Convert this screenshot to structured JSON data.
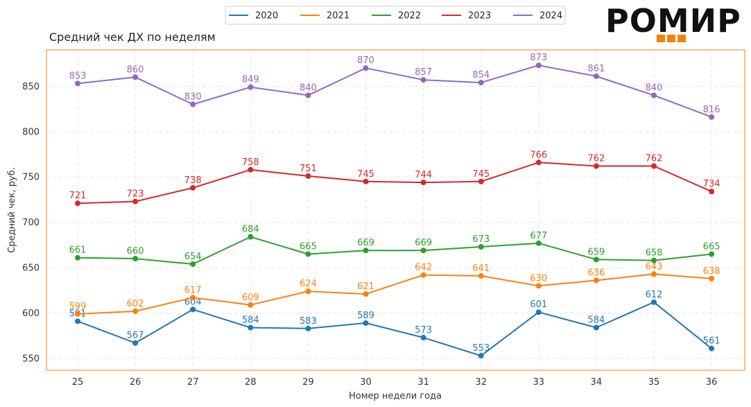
{
  "brand": {
    "name": "РОМИР",
    "accent_color": "#f5820b"
  },
  "chart_data": {
    "type": "line",
    "title": "Средний чек ДХ по неделям",
    "xlabel": "Номер недели года",
    "ylabel": "Средний чек, руб.",
    "x": [
      25,
      26,
      27,
      28,
      29,
      30,
      31,
      32,
      33,
      34,
      35,
      36
    ],
    "ylim": [
      537,
      890
    ],
    "yticks": [
      550,
      600,
      650,
      700,
      750,
      800,
      850
    ],
    "grid": true,
    "legend_position": "top-center",
    "frame_color": "#f5820b",
    "series": [
      {
        "name": "2020",
        "color": "#1f77b4",
        "values": [
          591,
          567,
          604,
          584,
          583,
          589,
          573,
          553,
          601,
          584,
          612,
          561
        ]
      },
      {
        "name": "2021",
        "color": "#ff7f0e",
        "values": [
          599,
          602,
          617,
          609,
          624,
          621,
          642,
          641,
          630,
          636,
          643,
          638
        ]
      },
      {
        "name": "2022",
        "color": "#2ca02c",
        "values": [
          661,
          660,
          654,
          684,
          665,
          669,
          669,
          673,
          677,
          659,
          658,
          665
        ]
      },
      {
        "name": "2023",
        "color": "#d62728",
        "values": [
          721,
          723,
          738,
          758,
          751,
          745,
          744,
          745,
          766,
          762,
          762,
          734
        ]
      },
      {
        "name": "2024",
        "color": "#9467bd",
        "values": [
          853,
          860,
          830,
          849,
          840,
          870,
          857,
          854,
          873,
          861,
          840,
          816
        ]
      }
    ]
  }
}
